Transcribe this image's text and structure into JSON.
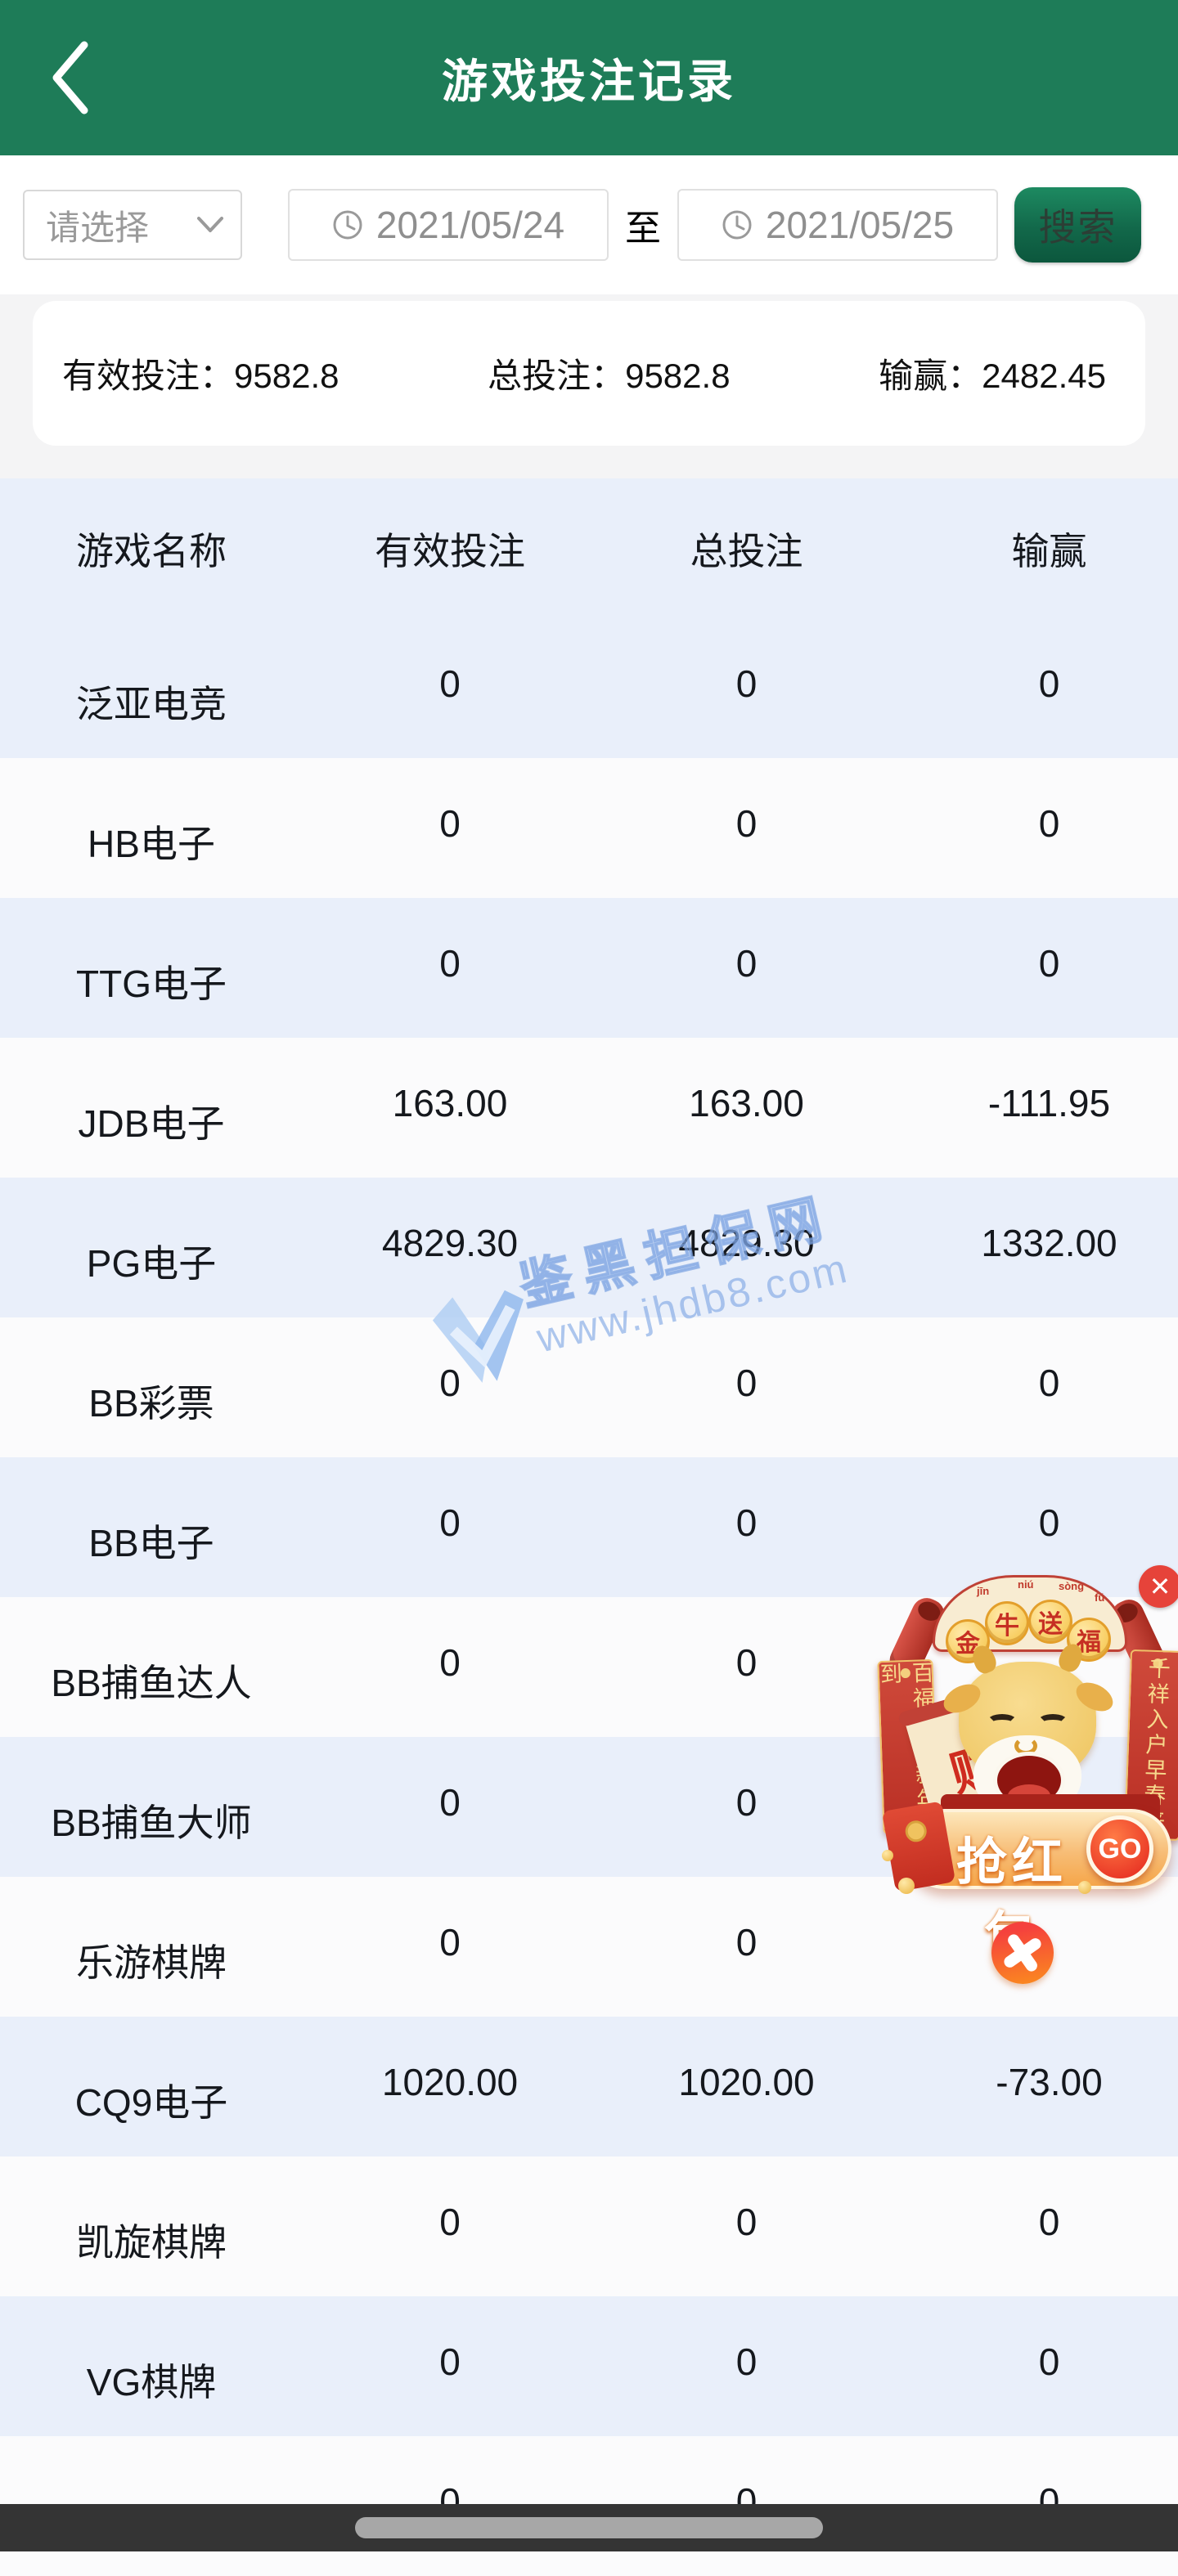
{
  "header": {
    "title": "游戏投注记录"
  },
  "filter": {
    "select_placeholder": "请选择",
    "date_from": "2021/05/24",
    "to_label": "至",
    "date_to": "2021/05/25",
    "search_label": "搜索"
  },
  "summary": {
    "valid_bet_label": "有效投注：",
    "valid_bet": "9582.8",
    "total_bet_label": "总投注：",
    "total_bet": "9582.8",
    "win_loss_label": "输赢：",
    "win_loss": "2482.45"
  },
  "table": {
    "columns": [
      "游戏名称",
      "有效投注",
      "总投注",
      "输赢"
    ],
    "rows": [
      {
        "name": "泛亚电竞",
        "valid_bet": "0",
        "total_bet": "0",
        "win_loss": "0"
      },
      {
        "name": "HB电子",
        "valid_bet": "0",
        "total_bet": "0",
        "win_loss": "0"
      },
      {
        "name": "TTG电子",
        "valid_bet": "0",
        "total_bet": "0",
        "win_loss": "0"
      },
      {
        "name": "JDB电子",
        "valid_bet": "163.00",
        "total_bet": "163.00",
        "win_loss": "-111.95"
      },
      {
        "name": "PG电子",
        "valid_bet": "4829.30",
        "total_bet": "4829.30",
        "win_loss": "1332.00"
      },
      {
        "name": "BB彩票",
        "valid_bet": "0",
        "total_bet": "0",
        "win_loss": "0"
      },
      {
        "name": "BB电子",
        "valid_bet": "0",
        "total_bet": "0",
        "win_loss": "0"
      },
      {
        "name": "BB捕鱼达人",
        "valid_bet": "0",
        "total_bet": "0",
        "win_loss": ""
      },
      {
        "name": "BB捕鱼大师",
        "valid_bet": "0",
        "total_bet": "0",
        "win_loss": ""
      },
      {
        "name": "乐游棋牌",
        "valid_bet": "0",
        "total_bet": "0",
        "win_loss": ""
      },
      {
        "name": "CQ9电子",
        "valid_bet": "1020.00",
        "total_bet": "1020.00",
        "win_loss": "-73.00"
      },
      {
        "name": "凯旋棋牌",
        "valid_bet": "0",
        "total_bet": "0",
        "win_loss": "0"
      },
      {
        "name": "VG棋牌",
        "valid_bet": "0",
        "total_bet": "0",
        "win_loss": "0"
      },
      {
        "name": "",
        "valid_bet": "0",
        "total_bet": "0",
        "win_loss": "0"
      }
    ]
  },
  "watermark": {
    "site_name": "鉴黑担保网",
    "site_url": "www.jhdb8.com"
  },
  "ad": {
    "banner_chars": [
      "金",
      "牛",
      "送",
      "福"
    ],
    "banner_pinyin": [
      "jīn",
      "niú",
      "sòng",
      "fú"
    ],
    "couplet_left": "百福临门新年到",
    "couplet_right": "千祥入户早春来",
    "scroll_char": "财",
    "cta_label": "抢红包",
    "go_label": "GO",
    "close_label": "✕"
  },
  "colors": {
    "header_green": "#1e7c58",
    "row_blue": "#e9effa",
    "accent_red": "#c62f23",
    "watermark_blue": "#7ca4e4"
  }
}
